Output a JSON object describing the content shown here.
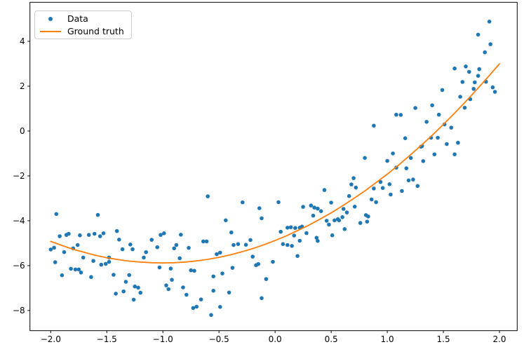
{
  "figure": {
    "background": "#ffffff",
    "legend": {
      "items": [
        {
          "label": "Data",
          "marker": "dot",
          "color": "#1f77b4"
        },
        {
          "label": "Ground truth",
          "marker": "line",
          "color": "#ff7f0e"
        }
      ]
    }
  },
  "chart_data": {
    "type": "scatter",
    "title": "",
    "xlabel": "",
    "ylabel": "",
    "grid": false,
    "legend_position": "upper left",
    "xlim": [
      -2.185,
      2.158
    ],
    "ylim": [
      -8.9,
      5.74
    ],
    "x_ticks": [
      -2.0,
      -1.5,
      -1.0,
      -0.5,
      0.0,
      0.5,
      1.0,
      1.5,
      2.0
    ],
    "x_tick_labels": [
      "−2.0",
      "−1.5",
      "−1.0",
      "−0.5",
      "0.0",
      "0.5",
      "1.0",
      "1.5",
      "2.0"
    ],
    "y_ticks": [
      -8,
      -6,
      -4,
      -2,
      0,
      2,
      4
    ],
    "y_tick_labels": [
      "−8",
      "−6",
      "−4",
      "−2",
      "0",
      "2",
      "4"
    ],
    "series": [
      {
        "name": "Data",
        "type": "scatter",
        "color": "#1f77b4",
        "marker_radius": 2.8,
        "points": [
          [
            -1.95,
            -3.7
          ],
          [
            -1.58,
            -3.74
          ],
          [
            -1.92,
            -4.69
          ],
          [
            -1.86,
            -4.63
          ],
          [
            -1.84,
            -4.58
          ],
          [
            -1.74,
            -4.65
          ],
          [
            -1.66,
            -4.63
          ],
          [
            -1.61,
            -4.58
          ],
          [
            -1.56,
            -4.69
          ],
          [
            -1.53,
            -4.56
          ],
          [
            -1.41,
            -4.46
          ],
          [
            -1.39,
            -4.84
          ],
          [
            -1.97,
            -5.2
          ],
          [
            -2.0,
            -5.28
          ],
          [
            -1.88,
            -5.4
          ],
          [
            -1.8,
            -5.23
          ],
          [
            -1.76,
            -5.08
          ],
          [
            -1.71,
            -5.64
          ],
          [
            -1.62,
            -5.79
          ],
          [
            -1.55,
            -5.96
          ],
          [
            -1.51,
            -5.92
          ],
          [
            -1.48,
            -5.83
          ],
          [
            -1.48,
            -5.64
          ],
          [
            -1.96,
            -5.85
          ],
          [
            -1.36,
            -5.27
          ],
          [
            -1.29,
            -5.06
          ],
          [
            -1.27,
            -5.27
          ],
          [
            -1.15,
            -5.4
          ],
          [
            -1.17,
            -5.64
          ],
          [
            -1.82,
            -6.14
          ],
          [
            -1.78,
            -6.17
          ],
          [
            -1.75,
            -6.17
          ],
          [
            -1.9,
            -6.43
          ],
          [
            -1.73,
            -6.31
          ],
          [
            -1.64,
            -6.51
          ],
          [
            -1.44,
            -6.41
          ],
          [
            -1.3,
            -6.42
          ],
          [
            -1.33,
            -6.72
          ],
          [
            -1.42,
            -7.25
          ],
          [
            -1.35,
            -7.15
          ],
          [
            -1.25,
            -6.93
          ],
          [
            -1.22,
            -6.98
          ],
          [
            -1.2,
            -7.21
          ],
          [
            -1.26,
            -7.52
          ],
          [
            -0.6,
            -2.91
          ],
          [
            -0.29,
            -3.18
          ],
          [
            -0.14,
            -3.44
          ],
          [
            -0.12,
            -3.89
          ],
          [
            -0.44,
            -3.98
          ],
          [
            -0.39,
            -4.52
          ],
          [
            -1.02,
            -4.63
          ],
          [
            -0.99,
            -4.56
          ],
          [
            -0.84,
            -4.62
          ],
          [
            -1.1,
            -4.85
          ],
          [
            -1.05,
            -5.18
          ],
          [
            -0.9,
            -5.23
          ],
          [
            -0.88,
            -5.08
          ],
          [
            -0.77,
            -5.21
          ],
          [
            -0.64,
            -4.92
          ],
          [
            -0.61,
            -4.92
          ],
          [
            -0.52,
            -5.49
          ],
          [
            -0.49,
            -5.42
          ],
          [
            -0.85,
            -5.67
          ],
          [
            -1.03,
            -6.08
          ],
          [
            -0.93,
            -6.13
          ],
          [
            -0.92,
            -6.63
          ],
          [
            -0.97,
            -6.88
          ],
          [
            -0.95,
            -7.05
          ],
          [
            -0.82,
            -6.97
          ],
          [
            -0.79,
            -7.3
          ],
          [
            -0.75,
            -6.21
          ],
          [
            -0.72,
            -6.23
          ],
          [
            -0.66,
            -7.51
          ],
          [
            -0.73,
            -7.89
          ],
          [
            -0.7,
            -7.83
          ],
          [
            -0.57,
            -8.2
          ],
          [
            -0.55,
            -7.12
          ],
          [
            -0.55,
            -6.48
          ],
          [
            -0.49,
            -7.84
          ],
          [
            -0.47,
            -6.35
          ],
          [
            -0.41,
            -7.2
          ],
          [
            -0.38,
            -6.1
          ],
          [
            -0.37,
            -5.08
          ],
          [
            -0.33,
            -5.04
          ],
          [
            -0.26,
            -5.07
          ],
          [
            -0.22,
            -4.86
          ],
          [
            -0.2,
            -5.6
          ],
          [
            -0.17,
            -5.98
          ],
          [
            -0.15,
            -5.93
          ],
          [
            -0.08,
            -6.6
          ],
          [
            -0.12,
            -7.45
          ],
          [
            -0.02,
            -5.83
          ],
          [
            0.03,
            -3.17
          ],
          [
            0.05,
            -4.49
          ],
          [
            0.11,
            -4.31
          ],
          [
            0.14,
            -4.29
          ],
          [
            0.18,
            -4.32
          ],
          [
            0.07,
            -5.04
          ],
          [
            0.11,
            -5.08
          ],
          [
            0.15,
            -5.12
          ],
          [
            0.17,
            -4.66
          ],
          [
            0.22,
            -4.31
          ],
          [
            0.24,
            -4.26
          ],
          [
            0.22,
            -4.89
          ],
          [
            0.2,
            -5.57
          ],
          [
            0.25,
            -3.38
          ],
          [
            0.28,
            -4.55
          ],
          [
            0.32,
            -3.32
          ],
          [
            0.35,
            -3.41
          ],
          [
            0.38,
            -3.46
          ],
          [
            0.34,
            -3.77
          ],
          [
            0.37,
            -4.76
          ],
          [
            0.38,
            -4.9
          ],
          [
            0.44,
            -2.63
          ],
          [
            0.41,
            -3.57
          ],
          [
            0.46,
            -4.0
          ],
          [
            0.48,
            -4.17
          ],
          [
            0.5,
            -3.19
          ],
          [
            0.51,
            -4.65
          ],
          [
            0.53,
            -3.98
          ],
          [
            0.56,
            -3.93
          ],
          [
            0.57,
            -3.98
          ],
          [
            0.6,
            -3.84
          ],
          [
            0.62,
            -4.37
          ],
          [
            0.61,
            -3.47
          ],
          [
            0.64,
            -3.63
          ],
          [
            0.66,
            -2.9
          ],
          [
            0.68,
            -2.38
          ],
          [
            0.7,
            -2.1
          ],
          [
            0.72,
            -2.52
          ],
          [
            0.71,
            -3.37
          ],
          [
            0.76,
            -4.1
          ],
          [
            0.82,
            -4.04
          ],
          [
            0.81,
            -3.75
          ],
          [
            0.83,
            -3.81
          ],
          [
            0.86,
            -3.05
          ],
          [
            0.9,
            -3.17
          ],
          [
            0.88,
            -2.56
          ],
          [
            0.94,
            -2.27
          ],
          [
            0.96,
            -2.54
          ],
          [
            1.02,
            -2.37
          ],
          [
            1.03,
            -2.83
          ],
          [
            0.88,
            0.24
          ],
          [
            0.8,
            -1.2
          ],
          [
            1.05,
            -1.0
          ],
          [
            1.0,
            -1.33
          ],
          [
            1.17,
            -1.66
          ],
          [
            1.19,
            -2.2
          ],
          [
            1.23,
            -2.16
          ],
          [
            1.27,
            -2.45
          ],
          [
            1.13,
            -2.67
          ],
          [
            1.08,
            -1.63
          ],
          [
            1.91,
            4.88
          ],
          [
            1.81,
            4.3
          ],
          [
            1.92,
            3.87
          ],
          [
            1.87,
            3.51
          ],
          [
            1.6,
            2.79
          ],
          [
            1.7,
            2.88
          ],
          [
            1.73,
            2.64
          ],
          [
            1.82,
            2.76
          ],
          [
            1.81,
            2.46
          ],
          [
            1.67,
            2.19
          ],
          [
            1.78,
            2.17
          ],
          [
            1.88,
            2.2
          ],
          [
            1.94,
            1.95
          ],
          [
            1.96,
            1.75
          ],
          [
            1.77,
            1.88
          ],
          [
            1.49,
            1.83
          ],
          [
            1.65,
            1.53
          ],
          [
            1.74,
            1.42
          ],
          [
            1.69,
            1.04
          ],
          [
            1.4,
            1.15
          ],
          [
            1.25,
            1.03
          ],
          [
            1.12,
            0.72
          ],
          [
            1.08,
            0.73
          ],
          [
            1.35,
            0.41
          ],
          [
            1.46,
            0.73
          ],
          [
            1.51,
            0.3
          ],
          [
            1.57,
            0.15
          ],
          [
            1.16,
            -0.32
          ],
          [
            1.39,
            -0.3
          ],
          [
            1.45,
            -0.3
          ],
          [
            1.3,
            -0.7
          ],
          [
            1.31,
            -0.67
          ],
          [
            1.53,
            -0.58
          ],
          [
            1.63,
            -0.52
          ],
          [
            1.42,
            -1.04
          ],
          [
            1.6,
            -1.04
          ],
          [
            1.21,
            -1.2
          ],
          [
            1.32,
            -1.34
          ]
        ]
      },
      {
        "name": "Ground truth",
        "type": "line",
        "color": "#ff7f0e",
        "line_width": 1.8,
        "formula": "y = 0.98x^2 + 1.98x - 4.88",
        "points": [
          [
            -2.0,
            -4.92
          ],
          [
            -1.9,
            -5.1
          ],
          [
            -1.8,
            -5.27
          ],
          [
            -1.7,
            -5.41
          ],
          [
            -1.6,
            -5.54
          ],
          [
            -1.5,
            -5.65
          ],
          [
            -1.4,
            -5.73
          ],
          [
            -1.3,
            -5.8
          ],
          [
            -1.2,
            -5.84
          ],
          [
            -1.1,
            -5.87
          ],
          [
            -1.0,
            -5.88
          ],
          [
            -0.9,
            -5.87
          ],
          [
            -0.8,
            -5.84
          ],
          [
            -0.7,
            -5.79
          ],
          [
            -0.6,
            -5.72
          ],
          [
            -0.5,
            -5.63
          ],
          [
            -0.4,
            -5.52
          ],
          [
            -0.3,
            -5.39
          ],
          [
            -0.2,
            -5.24
          ],
          [
            -0.1,
            -5.07
          ],
          [
            0.0,
            -4.88
          ],
          [
            0.1,
            -4.67
          ],
          [
            0.2,
            -4.44
          ],
          [
            0.3,
            -4.2
          ],
          [
            0.4,
            -3.93
          ],
          [
            0.5,
            -3.65
          ],
          [
            0.6,
            -3.34
          ],
          [
            0.7,
            -3.01
          ],
          [
            0.8,
            -2.67
          ],
          [
            0.9,
            -2.3
          ],
          [
            1.0,
            -1.92
          ],
          [
            1.1,
            -1.52
          ],
          [
            1.2,
            -1.09
          ],
          [
            1.3,
            -0.65
          ],
          [
            1.4,
            -0.19
          ],
          [
            1.5,
            0.3
          ],
          [
            1.6,
            0.8
          ],
          [
            1.7,
            1.32
          ],
          [
            1.8,
            1.86
          ],
          [
            1.9,
            2.42
          ],
          [
            2.0,
            3.0
          ]
        ]
      }
    ]
  }
}
